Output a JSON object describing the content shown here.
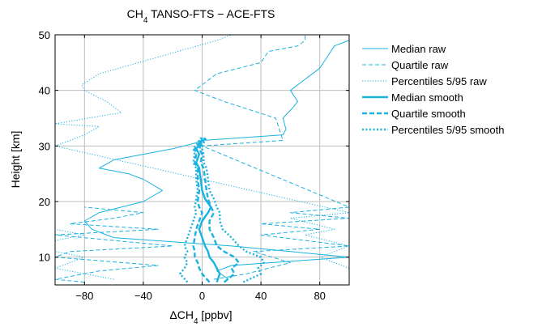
{
  "chart_data": {
    "type": "line",
    "title": "CH",
    "title_sub": "4",
    "title_rest": " TANSO-FTS − ACE-FTS",
    "xlabel": "ΔCH",
    "xlabel_sub": "4",
    "xlabel_rest": " [ppbv]",
    "ylabel": "Height [km]",
    "xlim": [
      -100,
      100
    ],
    "ylim": [
      5,
      50
    ],
    "xticks": [
      -80,
      -40,
      0,
      40,
      80
    ],
    "xtick_labels": [
      "−80",
      "−40",
      "0",
      "40",
      "80"
    ],
    "yticks": [
      10,
      20,
      30,
      40,
      50
    ],
    "ytick_labels": [
      "10",
      "20",
      "30",
      "40",
      "50"
    ],
    "grid": true,
    "legend_position": "outside-right",
    "line_color": "#1ab2e0",
    "series": [
      {
        "name": "Median raw",
        "style": "solid",
        "weight": "thin",
        "points": [
          [
            18,
            6
          ],
          [
            10,
            7.5
          ],
          [
            20,
            8.5
          ],
          [
            100,
            10
          ],
          [
            60,
            11
          ],
          [
            20,
            12
          ],
          [
            -60,
            13.5
          ],
          [
            -75,
            15
          ],
          [
            -80,
            16.5
          ],
          [
            -70,
            18
          ],
          [
            -55,
            19
          ],
          [
            -40,
            20
          ],
          [
            -27,
            22
          ],
          [
            -40,
            24
          ],
          [
            -50,
            25
          ],
          [
            -70,
            26
          ],
          [
            -60,
            27.5
          ],
          [
            -40,
            28.5
          ],
          [
            -20,
            29.5
          ],
          [
            -5,
            30.5
          ],
          [
            0,
            31
          ],
          [
            55,
            32
          ],
          [
            57,
            33
          ],
          [
            55,
            35
          ],
          [
            62,
            37
          ],
          [
            65,
            38
          ],
          [
            60,
            40
          ],
          [
            70,
            42
          ],
          [
            80,
            44
          ],
          [
            85,
            46
          ],
          [
            90,
            48
          ],
          [
            100,
            49
          ]
        ]
      },
      {
        "name": "Quartile raw",
        "style": "dashed",
        "weight": "thin",
        "points_left": [
          [
            -80,
            5.5
          ],
          [
            -100,
            6
          ],
          [
            -70,
            7.5
          ],
          [
            -30,
            8.5
          ],
          [
            -100,
            10
          ],
          [
            -90,
            11
          ],
          [
            -20,
            12
          ],
          [
            -60,
            13
          ],
          [
            -100,
            14
          ],
          [
            -30,
            15
          ],
          [
            -90,
            16
          ],
          [
            -60,
            17
          ],
          [
            -40,
            18
          ],
          [
            -80,
            19
          ]
        ],
        "points_right": [
          [
            8,
            6
          ],
          [
            30,
            7
          ],
          [
            60,
            9
          ],
          [
            35,
            11
          ],
          [
            100,
            12
          ],
          [
            40,
            14
          ],
          [
            80,
            15
          ],
          [
            40,
            16
          ],
          [
            100,
            17
          ],
          [
            60,
            18
          ],
          [
            100,
            19
          ],
          [
            0,
            30
          ],
          [
            55,
            31
          ],
          [
            50,
            35
          ],
          [
            15,
            38
          ],
          [
            -5,
            40
          ],
          [
            10,
            43
          ],
          [
            40,
            45
          ],
          [
            45,
            47
          ],
          [
            65,
            48
          ],
          [
            70,
            49
          ],
          [
            70,
            50
          ]
        ]
      },
      {
        "name": "Percentiles 5/95 raw",
        "style": "dotted",
        "weight": "thin",
        "points_left": [
          [
            -60,
            6
          ],
          [
            -100,
            8
          ],
          [
            -80,
            10
          ],
          [
            -100,
            11
          ],
          [
            -100,
            13
          ],
          [
            -80,
            14
          ],
          [
            -100,
            15
          ]
        ],
        "points_right": [
          [
            100,
            8
          ],
          [
            80,
            10
          ],
          [
            100,
            12
          ],
          [
            70,
            14
          ],
          [
            90,
            15
          ],
          [
            60,
            17
          ],
          [
            100,
            18
          ],
          [
            -100,
            30
          ],
          [
            -90,
            31
          ],
          [
            -80,
            32
          ],
          [
            -70,
            33.5
          ],
          [
            -100,
            34
          ],
          [
            -55,
            36
          ],
          [
            -65,
            38
          ],
          [
            -80,
            40
          ],
          [
            -82,
            41
          ],
          [
            -70,
            43
          ],
          [
            -30,
            46
          ],
          [
            10,
            49
          ],
          [
            20,
            50
          ]
        ]
      },
      {
        "name": "Median smooth",
        "style": "solid",
        "weight": "thick",
        "points": [
          [
            10,
            5.5
          ],
          [
            12,
            7
          ],
          [
            10,
            8
          ],
          [
            8,
            9
          ],
          [
            5,
            10
          ],
          [
            4,
            11
          ],
          [
            2,
            12
          ],
          [
            0,
            13.5
          ],
          [
            -2,
            15
          ],
          [
            0,
            16.5
          ],
          [
            4,
            18
          ],
          [
            6,
            19
          ],
          [
            2,
            20.5
          ],
          [
            0,
            22
          ],
          [
            -1,
            24
          ],
          [
            -2,
            26
          ],
          [
            -4,
            27
          ],
          [
            -2,
            28.5
          ],
          [
            -4,
            29.5
          ],
          [
            -1,
            30.5
          ],
          [
            0,
            31.5
          ]
        ]
      },
      {
        "name": "Quartile smooth",
        "style": "dashed",
        "weight": "thick",
        "points_left": [
          [
            5,
            5.5
          ],
          [
            0,
            7
          ],
          [
            -2,
            8
          ],
          [
            -3,
            9
          ],
          [
            -5,
            10
          ],
          [
            -5,
            11
          ],
          [
            -6,
            12
          ],
          [
            -5,
            13.5
          ],
          [
            -4,
            15
          ],
          [
            -2,
            16.5
          ],
          [
            0,
            18
          ],
          [
            -2,
            19
          ],
          [
            -3,
            20
          ],
          [
            -2,
            22
          ],
          [
            -3,
            24
          ],
          [
            -3,
            26
          ],
          [
            -5,
            27
          ],
          [
            -4,
            28.5
          ],
          [
            -5,
            29.5
          ],
          [
            -2,
            30.5
          ],
          [
            0,
            31.5
          ]
        ],
        "points_right": [
          [
            15,
            5.5
          ],
          [
            22,
            7
          ],
          [
            20,
            8
          ],
          [
            25,
            9
          ],
          [
            22,
            10
          ],
          [
            15,
            11
          ],
          [
            10,
            12
          ],
          [
            8,
            13.5
          ],
          [
            5,
            15
          ],
          [
            5,
            16.5
          ],
          [
            8,
            18
          ],
          [
            6,
            19
          ],
          [
            4,
            20.5
          ],
          [
            3,
            22
          ],
          [
            2,
            24
          ],
          [
            1,
            26
          ],
          [
            -1,
            27
          ],
          [
            0,
            28.5
          ],
          [
            -2,
            29.5
          ],
          [
            0,
            30.5
          ],
          [
            2,
            31.5
          ]
        ]
      },
      {
        "name": "Percentiles 5/95 smooth",
        "style": "dotted",
        "weight": "thick",
        "points_left": [
          [
            -10,
            5.5
          ],
          [
            -15,
            7
          ],
          [
            -12,
            8
          ],
          [
            -10,
            9
          ],
          [
            -12,
            10
          ],
          [
            -10,
            11
          ],
          [
            -12,
            12
          ],
          [
            -10,
            13.5
          ],
          [
            -8,
            15
          ],
          [
            -6,
            16.5
          ],
          [
            -4,
            18
          ],
          [
            -5,
            19
          ],
          [
            -4,
            20.5
          ],
          [
            -3,
            22
          ],
          [
            -4,
            24
          ],
          [
            -4,
            26
          ],
          [
            -6,
            27
          ],
          [
            -5,
            28.5
          ],
          [
            -6,
            29.5
          ],
          [
            -3,
            30.5
          ],
          [
            -1,
            31.5
          ]
        ],
        "points_right": [
          [
            28,
            5.5
          ],
          [
            40,
            7
          ],
          [
            38,
            8
          ],
          [
            42,
            9
          ],
          [
            40,
            10
          ],
          [
            30,
            11
          ],
          [
            25,
            12
          ],
          [
            20,
            13.5
          ],
          [
            14,
            15
          ],
          [
            12,
            16.5
          ],
          [
            12,
            18
          ],
          [
            10,
            19
          ],
          [
            8,
            20.5
          ],
          [
            5,
            22
          ],
          [
            4,
            24
          ],
          [
            3,
            26
          ],
          [
            1,
            27
          ],
          [
            1,
            28.5
          ],
          [
            0,
            29.5
          ],
          [
            1,
            30.5
          ],
          [
            3,
            31.5
          ]
        ]
      }
    ]
  }
}
